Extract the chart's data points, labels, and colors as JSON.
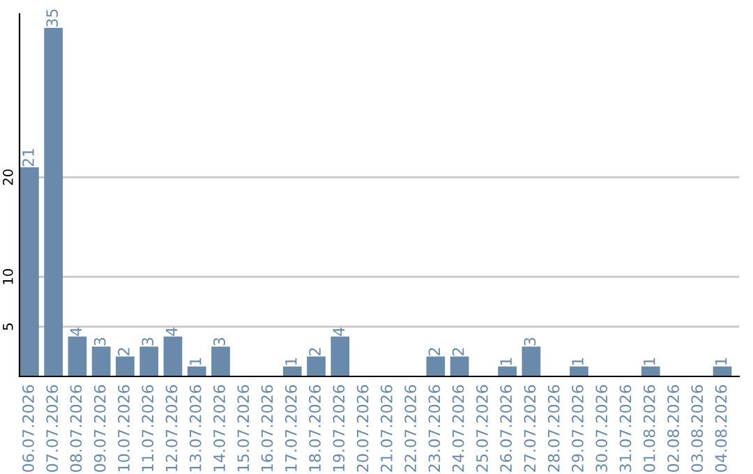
{
  "chart_data": {
    "type": "bar",
    "categories": [
      "06.07.2026",
      "07.07.2026",
      "08.07.2026",
      "09.07.2026",
      "10.07.2026",
      "11.07.2026",
      "12.07.2026",
      "13.07.2026",
      "14.07.2026",
      "15.07.2026",
      "16.07.2026",
      "17.07.2026",
      "18.07.2026",
      "19.07.2026",
      "20.07.2026",
      "21.07.2026",
      "22.07.2026",
      "23.07.2026",
      "24.07.2026",
      "25.07.2026",
      "26.07.2026",
      "27.07.2026",
      "28.07.2026",
      "29.07.2026",
      "30.07.2026",
      "31.07.2026",
      "01.08.2026",
      "02.08.2026",
      "03.08.2026",
      "04.08.2026"
    ],
    "values": [
      21,
      35,
      4,
      3,
      2,
      3,
      4,
      1,
      3,
      0,
      0,
      1,
      2,
      4,
      0,
      0,
      0,
      2,
      2,
      0,
      1,
      3,
      0,
      1,
      0,
      0,
      1,
      0,
      0,
      1
    ],
    "value_labels": [
      "21",
      "35",
      "4",
      "3",
      "2",
      "3",
      "4",
      "1",
      "3",
      null,
      null,
      "1",
      "2",
      "4",
      null,
      null,
      null,
      "2",
      "2",
      null,
      "1",
      "3",
      null,
      "1",
      null,
      null,
      "1",
      null,
      null,
      "1"
    ],
    "color": "#6a8aab",
    "ylim": [
      0,
      36.4
    ],
    "yticks": [
      5,
      10,
      20
    ],
    "grid": "y"
  }
}
